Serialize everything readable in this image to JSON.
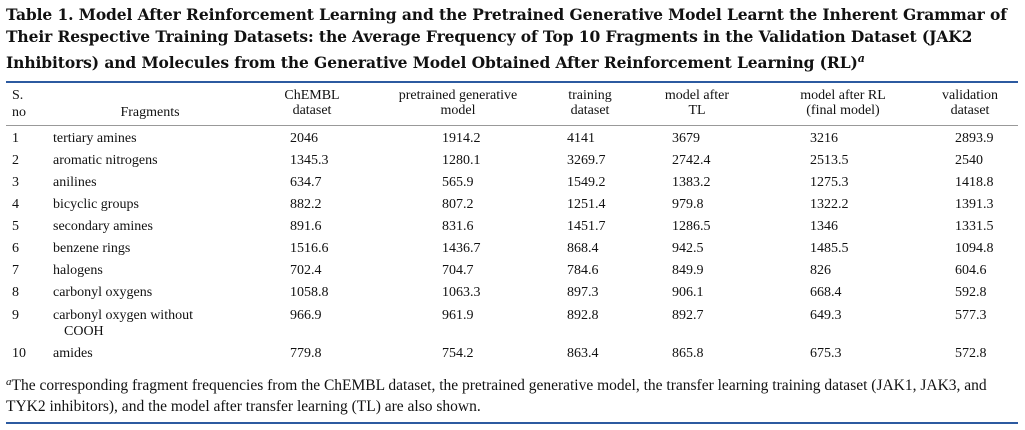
{
  "caption": {
    "title": "Table 1. Model After Reinforcement Learning and the Pretrained Generative Model Learnt the Inherent Grammar of Their Respective Training Datasets: the Average Frequency of Top 10 Fragments in the Validation Dataset (JAK2 Inhibitors) and Molecules from the Generative Model Obtained After Reinforcement Learning (RL)",
    "note_mark": "a"
  },
  "headers": {
    "sno_line1": "S.",
    "sno_line2": "no",
    "fragments": "Fragments",
    "chembl_line1": "ChEMBL",
    "chembl_line2": "dataset",
    "pretrained_line1": "pretrained generative",
    "pretrained_line2": "model",
    "training_line1": "training",
    "training_line2": "dataset",
    "tl_line1": "model after",
    "tl_line2": "TL",
    "rl_line1": "model after RL",
    "rl_line2": "(final model)",
    "validation_line1": "validation",
    "validation_line2": "dataset"
  },
  "rows": [
    {
      "sno": "1",
      "fragment": "tertiary amines",
      "chembl": "2046",
      "pretrained": "1914.2",
      "training": "4141",
      "tl": "3679",
      "rl": "3216",
      "validation": "2893.9"
    },
    {
      "sno": "2",
      "fragment": "aromatic nitrogens",
      "chembl": "1345.3",
      "pretrained": "1280.1",
      "training": "3269.7",
      "tl": "2742.4",
      "rl": "2513.5",
      "validation": "2540"
    },
    {
      "sno": "3",
      "fragment": "anilines",
      "chembl": "634.7",
      "pretrained": "565.9",
      "training": "1549.2",
      "tl": "1383.2",
      "rl": "1275.3",
      "validation": "1418.8"
    },
    {
      "sno": "4",
      "fragment": "bicyclic groups",
      "chembl": "882.2",
      "pretrained": "807.2",
      "training": "1251.4",
      "tl": "979.8",
      "rl": "1322.2",
      "validation": "1391.3"
    },
    {
      "sno": "5",
      "fragment": "secondary amines",
      "chembl": "891.6",
      "pretrained": "831.6",
      "training": "1451.7",
      "tl": "1286.5",
      "rl": "1346",
      "validation": "1331.5"
    },
    {
      "sno": "6",
      "fragment": "benzene rings",
      "chembl": "1516.6",
      "pretrained": "1436.7",
      "training": "868.4",
      "tl": "942.5",
      "rl": "1485.5",
      "validation": "1094.8"
    },
    {
      "sno": "7",
      "fragment": "halogens",
      "chembl": "702.4",
      "pretrained": "704.7",
      "training": "784.6",
      "tl": "849.9",
      "rl": "826",
      "validation": "604.6"
    },
    {
      "sno": "8",
      "fragment": "carbonyl oxygens",
      "chembl": "1058.8",
      "pretrained": "1063.3",
      "training": "897.3",
      "tl": "906.1",
      "rl": "668.4",
      "validation": "592.8"
    },
    {
      "sno": "9",
      "fragment": "carbonyl oxygen without",
      "fragment_line2": "COOH",
      "chembl": "966.9",
      "pretrained": "961.9",
      "training": "892.8",
      "tl": "892.7",
      "rl": "649.3",
      "validation": "577.3"
    },
    {
      "sno": "10",
      "fragment": "amides",
      "chembl": "779.8",
      "pretrained": "754.2",
      "training": "863.4",
      "tl": "865.8",
      "rl": "675.3",
      "validation": "572.8"
    }
  ],
  "footnote": {
    "mark": "a",
    "text": "The corresponding fragment frequencies from the ChEMBL dataset, the pretrained generative model, the transfer learning training dataset (JAK1, JAK3, and TYK2 inhibitors), and the model after transfer learning (TL) are also shown."
  }
}
